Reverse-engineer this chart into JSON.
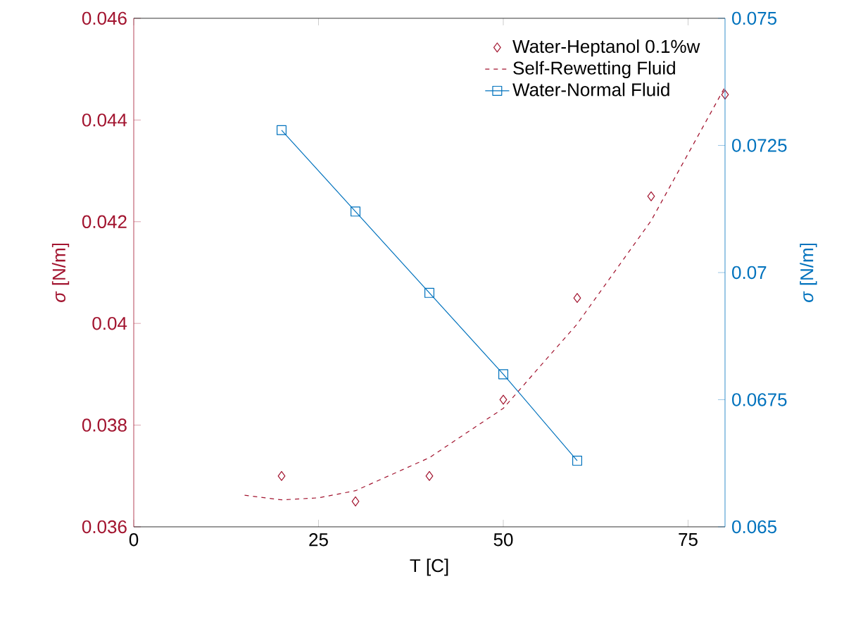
{
  "chart_data": {
    "type": "line",
    "xlabel": "T [C]",
    "ylabel": "*σ* [N/m]",
    "y2label": "*σ* [N/m]",
    "xlim": [
      0,
      80
    ],
    "xticks": [
      0,
      25,
      50,
      75
    ],
    "ylim": [
      0.036,
      0.046
    ],
    "yticks": [
      0.036,
      0.038,
      0.04,
      0.042,
      0.044,
      0.046
    ],
    "y2lim": [
      0.065,
      0.075
    ],
    "y2ticks": [
      0.065,
      0.0675,
      0.07,
      0.0725,
      0.075
    ],
    "legend": "top right",
    "series": [
      {
        "name": "Water-Heptanol 0.1%w",
        "type": "scatter",
        "marker": "diamond",
        "axis": "y",
        "color": "#a2142f",
        "x": [
          20,
          30,
          40,
          50,
          60,
          70,
          80
        ],
        "values": [
          0.037,
          0.0365,
          0.037,
          0.0385,
          0.0405,
          0.0425,
          0.0445
        ]
      },
      {
        "name": "Self-Rewetting Fluid",
        "marker": "none",
        "line_style": "dashed",
        "axis": "y",
        "color": "#a2142f",
        "x": [
          15,
          20,
          25,
          30,
          40,
          50,
          60,
          70,
          80
        ],
        "values": [
          0.03662,
          0.03653,
          0.03657,
          0.03671,
          0.03736,
          0.03833,
          0.03999,
          0.04202,
          0.04465
        ]
      },
      {
        "name": "Water-Normal Fluid",
        "marker": "square",
        "line_style": "solid",
        "axis": "y2",
        "color": "#0072bd",
        "x": [
          20,
          30,
          40,
          50,
          60
        ],
        "values": [
          0.0728,
          0.0712,
          0.0696,
          0.068,
          0.0663
        ]
      }
    ]
  }
}
